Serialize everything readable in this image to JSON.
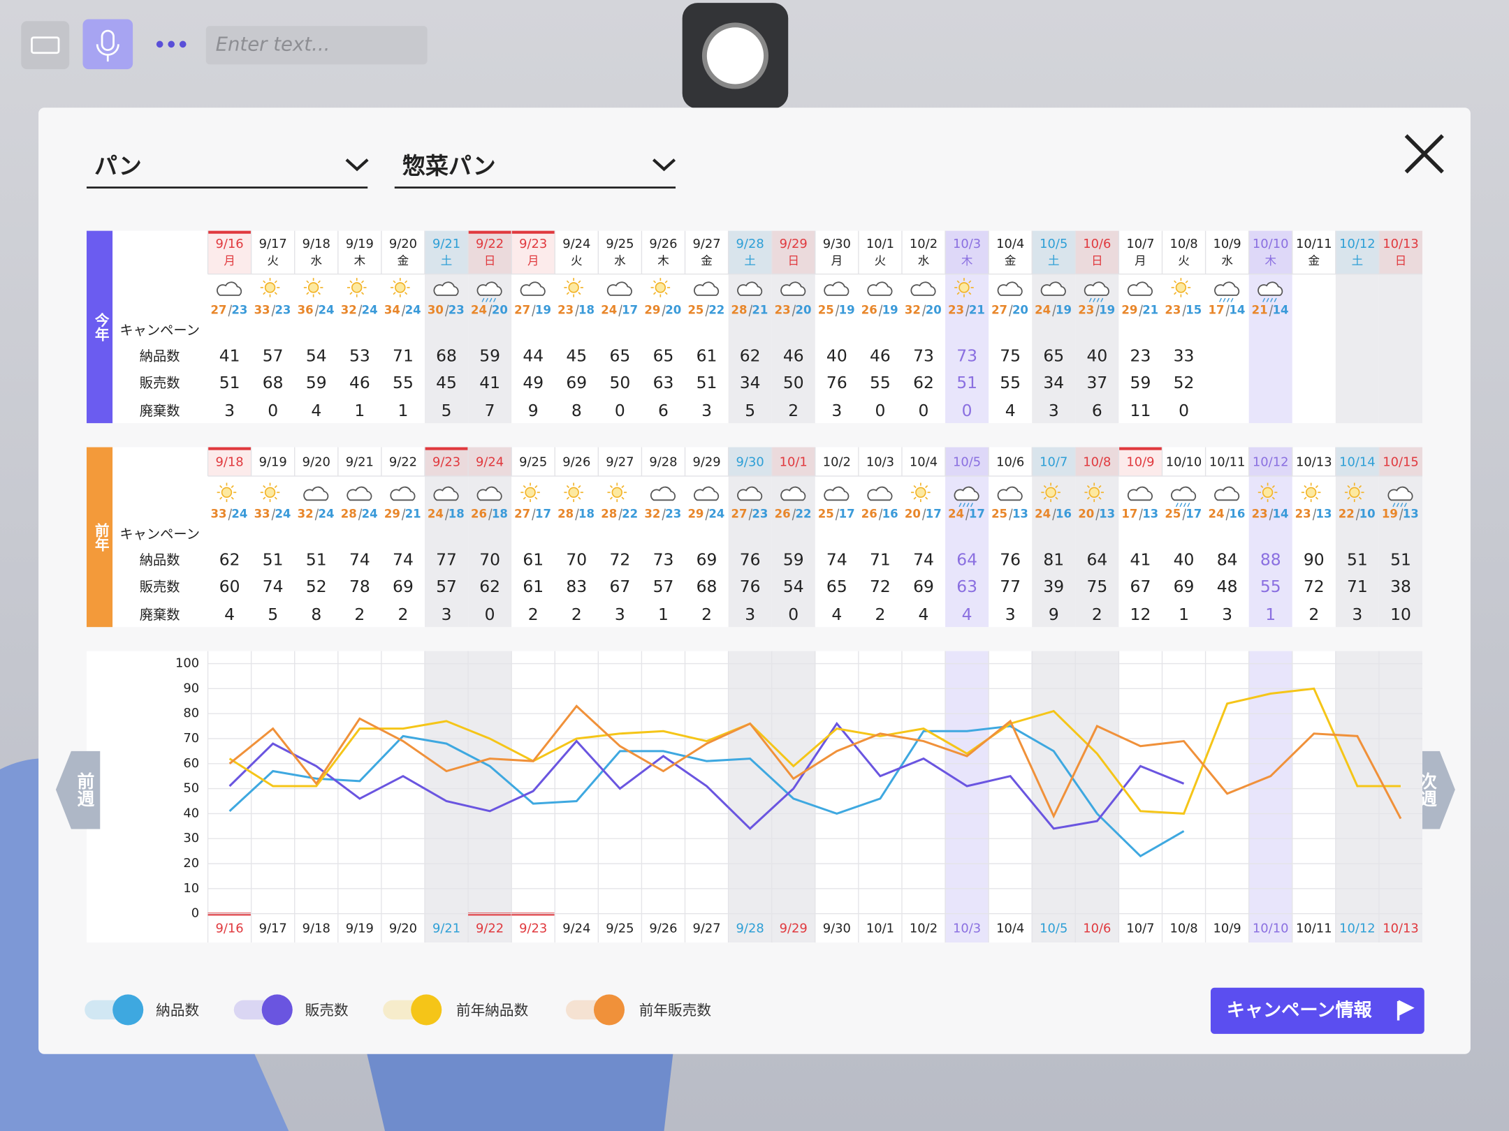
{
  "toolbar": {
    "placeholder": "Enter text..."
  },
  "filters": [
    "パン",
    "惣菜パン"
  ],
  "this_year": {
    "label": "今年",
    "dates": [
      "9/16",
      "9/17",
      "9/18",
      "9/19",
      "9/20",
      "9/21",
      "9/22",
      "9/23",
      "9/24",
      "9/25",
      "9/26",
      "9/27",
      "9/28",
      "9/29",
      "9/30",
      "10/1",
      "10/2",
      "10/3",
      "10/4",
      "10/5",
      "10/6",
      "10/7",
      "10/8",
      "10/9",
      "10/10",
      "10/11",
      "10/12",
      "10/13"
    ],
    "weekdays": [
      "月",
      "火",
      "水",
      "木",
      "金",
      "土",
      "日",
      "月",
      "火",
      "水",
      "木",
      "金",
      "土",
      "日",
      "月",
      "火",
      "水",
      "木",
      "金",
      "土",
      "日",
      "月",
      "火",
      "水",
      "木",
      "金",
      "土",
      "日"
    ],
    "date_colors": [
      "#e0393e",
      "#222",
      "#222",
      "#222",
      "#222",
      "#2e9fd6",
      "#e0393e",
      "#e0393e",
      "#222",
      "#222",
      "#222",
      "#222",
      "#2e9fd6",
      "#e0393e",
      "#222",
      "#222",
      "#222",
      "#8a6fe0",
      "#222",
      "#2e9fd6",
      "#e0393e",
      "#222",
      "#222",
      "#222",
      "#8a6fe0",
      "#222",
      "#2e9fd6",
      "#e0393e"
    ],
    "col_colors": [
      null,
      null,
      null,
      null,
      null,
      "#ececef",
      "#ececef",
      null,
      null,
      null,
      null,
      null,
      "#ececef",
      "#ececef",
      null,
      null,
      null,
      "#e8e5fb",
      null,
      "#ececef",
      "#ececef",
      null,
      null,
      null,
      "#e8e5fb",
      null,
      "#ececef",
      "#ececef"
    ],
    "bar_colors": [
      "#e0393e",
      null,
      null,
      null,
      null,
      null,
      "#e0393e",
      "#e0393e",
      null,
      null,
      null,
      null,
      null,
      null,
      null,
      null,
      null,
      null,
      null,
      null,
      null,
      null,
      null,
      null,
      null,
      null,
      null,
      null
    ],
    "high": [
      27,
      33,
      36,
      32,
      34,
      30,
      24,
      27,
      23,
      24,
      29,
      25,
      28,
      23,
      25,
      26,
      32,
      23,
      27,
      24,
      23,
      29,
      23,
      17,
      21,
      null,
      null,
      null
    ],
    "low": [
      23,
      23,
      24,
      24,
      24,
      23,
      20,
      19,
      18,
      17,
      20,
      22,
      21,
      20,
      19,
      19,
      20,
      21,
      20,
      19,
      19,
      21,
      15,
      14,
      14,
      null,
      null,
      null
    ],
    "row_labels": [
      "キャンペーン",
      "納品数",
      "販売数",
      "廃棄数"
    ],
    "delivered": [
      41,
      57,
      54,
      53,
      71,
      68,
      59,
      44,
      45,
      65,
      65,
      61,
      62,
      46,
      40,
      46,
      73,
      73,
      75,
      65,
      40,
      23,
      33,
      null,
      null,
      null,
      null,
      null
    ],
    "sold": [
      51,
      68,
      59,
      46,
      55,
      45,
      41,
      49,
      69,
      50,
      63,
      51,
      34,
      50,
      76,
      55,
      62,
      51,
      55,
      34,
      37,
      59,
      52,
      null,
      null,
      null,
      null,
      null
    ],
    "waste": [
      3,
      0,
      4,
      1,
      1,
      5,
      7,
      9,
      8,
      0,
      6,
      3,
      5,
      2,
      3,
      0,
      0,
      0,
      4,
      3,
      6,
      11,
      0,
      null,
      null,
      null,
      null,
      null
    ]
  },
  "last_year": {
    "label": "前年",
    "dates": [
      "9/18",
      "9/19",
      "9/20",
      "9/21",
      "9/22",
      "9/23",
      "9/24",
      "9/25",
      "9/26",
      "9/27",
      "9/28",
      "9/29",
      "9/30",
      "10/1",
      "10/2",
      "10/3",
      "10/4",
      "10/5",
      "10/6",
      "10/7",
      "10/8",
      "10/9",
      "10/10",
      "10/11",
      "10/12",
      "10/13",
      "10/14",
      "10/15"
    ],
    "date_colors": [
      "#e0393e",
      "#222",
      "#222",
      "#222",
      "#222",
      "#e0393e",
      "#e0393e",
      "#222",
      "#222",
      "#222",
      "#222",
      "#222",
      "#2e9fd6",
      "#e0393e",
      "#222",
      "#222",
      "#222",
      "#8a6fe0",
      "#222",
      "#2e9fd6",
      "#e0393e",
      "#e0393e",
      "#222",
      "#222",
      "#8a6fe0",
      "#222",
      "#2e9fd6",
      "#e0393e"
    ],
    "col_colors": [
      null,
      null,
      null,
      null,
      null,
      "#ececef",
      "#ececef",
      null,
      null,
      null,
      null,
      null,
      "#ececef",
      "#ececef",
      null,
      null,
      null,
      "#e8e5fb",
      null,
      "#ececef",
      "#ececef",
      null,
      null,
      null,
      "#e8e5fb",
      null,
      "#ececef",
      "#ececef"
    ],
    "bar_colors": [
      "#e0393e",
      null,
      null,
      null,
      null,
      "#e0393e",
      null,
      null,
      null,
      null,
      null,
      null,
      null,
      null,
      null,
      null,
      null,
      null,
      null,
      null,
      null,
      "#e0393e",
      null,
      null,
      null,
      null,
      null,
      null
    ],
    "high": [
      33,
      33,
      32,
      28,
      29,
      24,
      26,
      27,
      28,
      28,
      32,
      29,
      27,
      26,
      25,
      26,
      20,
      24,
      25,
      24,
      20,
      17,
      25,
      24,
      23,
      23,
      22,
      19
    ],
    "low": [
      24,
      24,
      24,
      24,
      21,
      18,
      18,
      17,
      18,
      22,
      23,
      24,
      23,
      22,
      17,
      16,
      17,
      17,
      13,
      16,
      13,
      13,
      17,
      16,
      14,
      13,
      10,
      13
    ],
    "row_labels": [
      "キャンペーン",
      "納品数",
      "販売数",
      "廃棄数"
    ],
    "delivered": [
      62,
      51,
      51,
      74,
      74,
      77,
      70,
      61,
      70,
      72,
      73,
      69,
      76,
      59,
      74,
      71,
      74,
      64,
      76,
      81,
      64,
      41,
      40,
      84,
      88,
      90,
      51,
      51
    ],
    "sold": [
      60,
      74,
      52,
      78,
      69,
      57,
      62,
      61,
      83,
      67,
      57,
      68,
      76,
      54,
      65,
      72,
      69,
      63,
      77,
      39,
      75,
      67,
      69,
      48,
      55,
      72,
      71,
      38
    ],
    "waste": [
      4,
      5,
      8,
      2,
      2,
      3,
      0,
      2,
      2,
      3,
      1,
      2,
      3,
      0,
      4,
      2,
      4,
      4,
      3,
      9,
      2,
      12,
      1,
      3,
      1,
      2,
      3,
      10
    ]
  },
  "chart_data": {
    "type": "line",
    "categories": [
      "9/16",
      "9/17",
      "9/18",
      "9/19",
      "9/20",
      "9/21",
      "9/22",
      "9/23",
      "9/24",
      "9/25",
      "9/26",
      "9/27",
      "9/28",
      "9/29",
      "9/30",
      "10/1",
      "10/2",
      "10/3",
      "10/4",
      "10/5",
      "10/6",
      "10/7",
      "10/8",
      "10/9",
      "10/10",
      "10/11",
      "10/12",
      "10/13"
    ],
    "ylim": [
      0,
      100
    ],
    "yticks": [
      0,
      10,
      20,
      30,
      40,
      50,
      60,
      70,
      80,
      90,
      100
    ],
    "grid": true,
    "series": [
      {
        "name": "納品数",
        "color": "#3ea8e0",
        "values": [
          41,
          57,
          54,
          53,
          71,
          68,
          59,
          44,
          45,
          65,
          65,
          61,
          62,
          46,
          40,
          46,
          73,
          73,
          75,
          65,
          40,
          23,
          33,
          null,
          null,
          null,
          null,
          null
        ]
      },
      {
        "name": "販売数",
        "color": "#6a55e0",
        "values": [
          51,
          68,
          59,
          46,
          55,
          45,
          41,
          49,
          69,
          50,
          63,
          51,
          34,
          50,
          76,
          55,
          62,
          51,
          55,
          34,
          37,
          59,
          52,
          null,
          null,
          null,
          null,
          null
        ]
      },
      {
        "name": "前年納品数",
        "color": "#f5c518",
        "values": [
          62,
          51,
          51,
          74,
          74,
          77,
          70,
          61,
          70,
          72,
          73,
          69,
          76,
          59,
          74,
          71,
          74,
          64,
          76,
          81,
          64,
          41,
          40,
          84,
          88,
          90,
          51,
          51
        ]
      },
      {
        "name": "前年販売数",
        "color": "#f0913a",
        "values": [
          60,
          74,
          52,
          78,
          69,
          57,
          62,
          61,
          83,
          67,
          57,
          68,
          76,
          54,
          65,
          72,
          69,
          63,
          77,
          39,
          75,
          67,
          69,
          48,
          55,
          72,
          71,
          38
        ]
      }
    ]
  },
  "nav": {
    "prev": "前週",
    "next": "次週"
  },
  "campaign_button": "キャンペーン情報"
}
